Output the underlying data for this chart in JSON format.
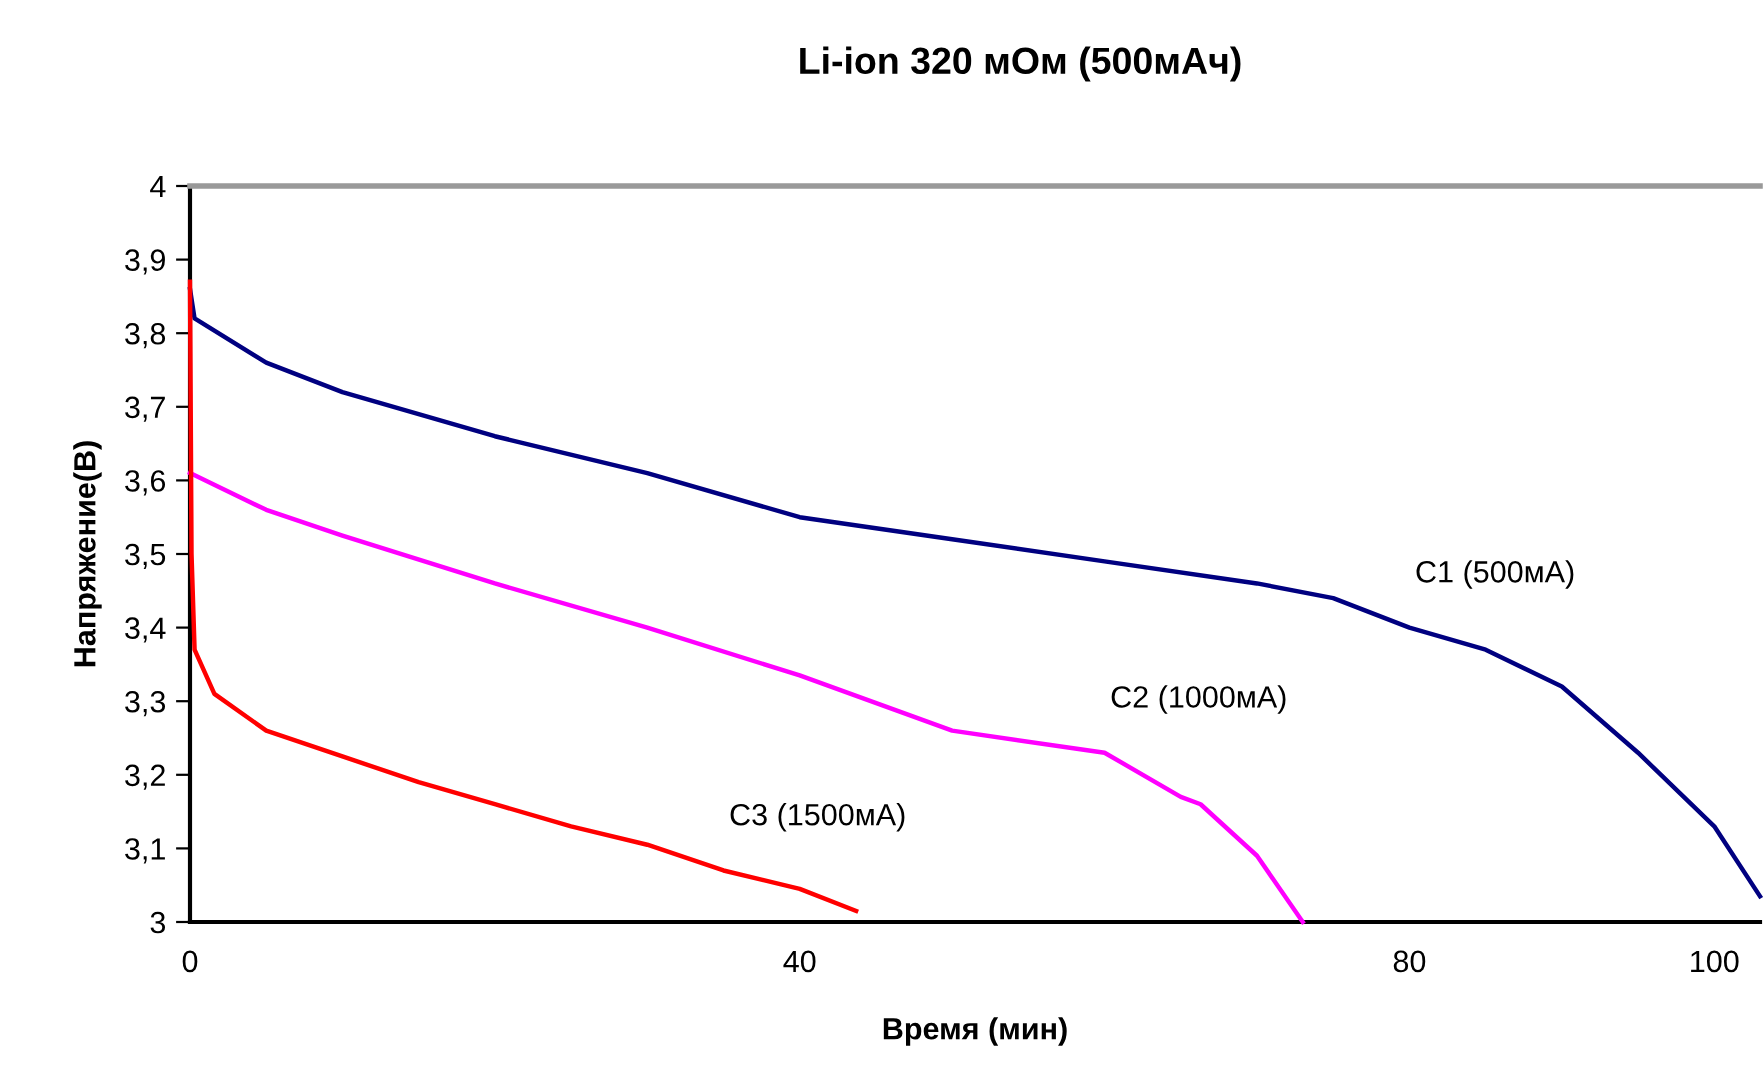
{
  "chart_data": {
    "type": "line",
    "title": "Li-ion 320 мОм (500мАч)",
    "xlabel": "Время (мин)",
    "ylabel": "Напряжение(В)",
    "xlim": [
      0,
      103
    ],
    "xticks": [
      0,
      40,
      80,
      100
    ],
    "ylim": [
      3,
      4
    ],
    "yticks": [
      {
        "value": 3,
        "label": "3"
      },
      {
        "value": 3.1,
        "label": "3,1"
      },
      {
        "value": 3.2,
        "label": "3,2"
      },
      {
        "value": 3.3,
        "label": "3,3"
      },
      {
        "value": 3.4,
        "label": "3,4"
      },
      {
        "value": 3.5,
        "label": "3,5"
      },
      {
        "value": 3.6,
        "label": "3,6"
      },
      {
        "value": 3.7,
        "label": "3,7"
      },
      {
        "value": 3.8,
        "label": "3,8"
      },
      {
        "value": 3.9,
        "label": "3,9"
      },
      {
        "value": 4,
        "label": "4"
      }
    ],
    "grid": false,
    "legend": false,
    "marker": "none",
    "line_style": "solid",
    "series": [
      {
        "name": "C1 (500мА)",
        "color": "#000080",
        "x": [
          0,
          0.3,
          5,
          10,
          20,
          30,
          40,
          50,
          60,
          70,
          75,
          80,
          85,
          90,
          95,
          100,
          103
        ],
        "values": [
          3.86,
          3.82,
          3.76,
          3.72,
          3.66,
          3.61,
          3.55,
          3.52,
          3.49,
          3.46,
          3.44,
          3.4,
          3.37,
          3.32,
          3.23,
          3.13,
          3.035
        ]
      },
      {
        "name": "C2 (1000мА)",
        "color": "#ff00ff",
        "x": [
          0,
          5,
          10,
          20,
          30,
          40,
          50,
          60,
          65,
          66.3,
          70,
          73
        ],
        "values": [
          3.61,
          3.56,
          3.525,
          3.46,
          3.4,
          3.335,
          3.26,
          3.23,
          3.17,
          3.16,
          3.09,
          3.0
        ]
      },
      {
        "name": "C3 (1500мА)",
        "color": "#ff0000",
        "x": [
          0,
          0.1,
          0.3,
          1.6,
          5,
          10,
          15,
          20,
          25,
          30,
          35,
          40,
          43.7
        ],
        "values": [
          3.87,
          3.5,
          3.37,
          3.31,
          3.26,
          3.225,
          3.19,
          3.16,
          3.13,
          3.105,
          3.07,
          3.045,
          3.015
        ]
      }
    ]
  }
}
